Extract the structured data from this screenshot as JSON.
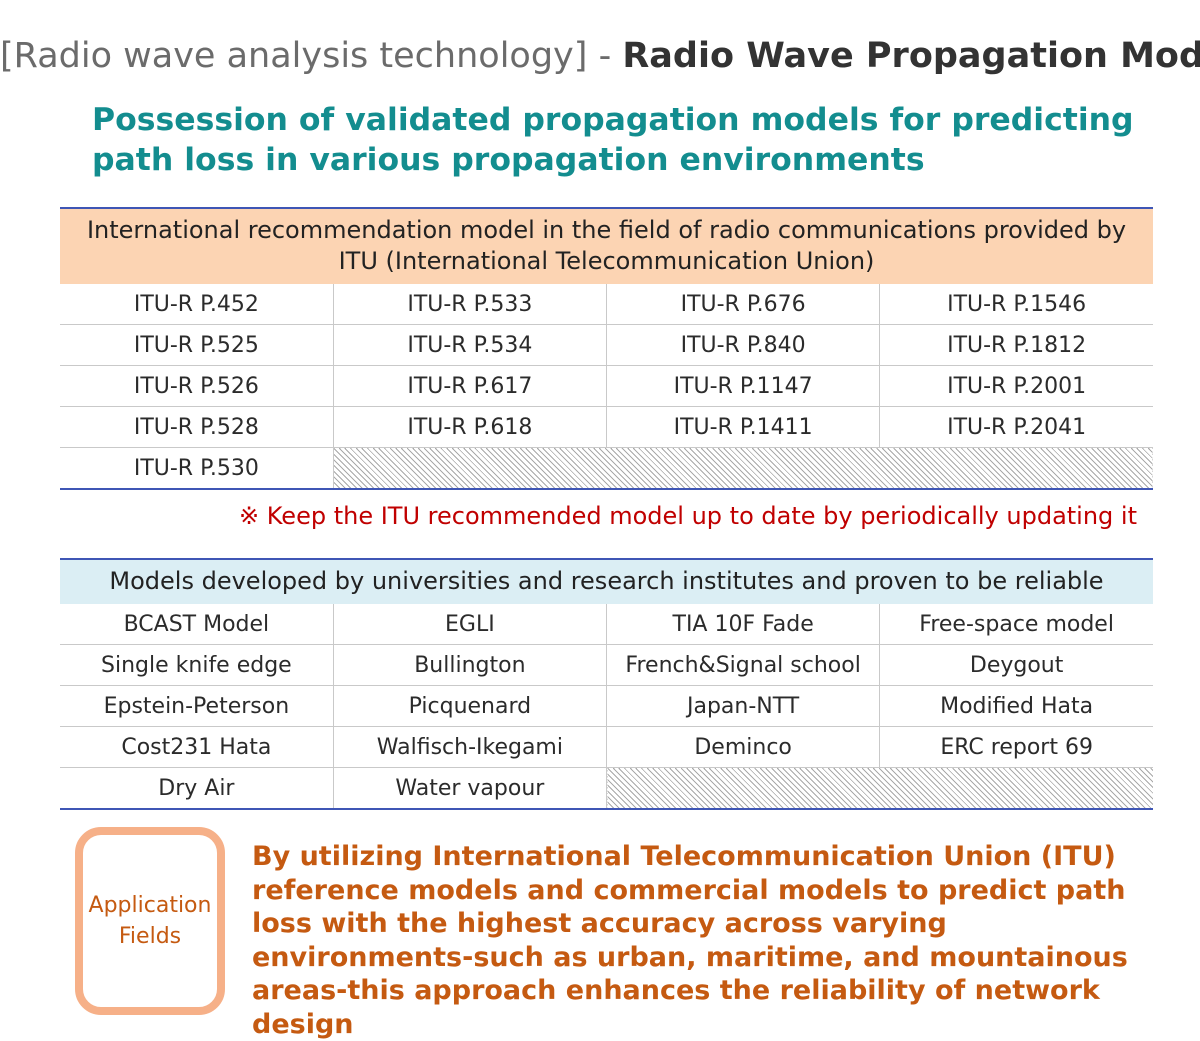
{
  "header": {
    "category": "[Radio wave analysis technology]",
    "separator": "-",
    "title": "Radio Wave Propagation Model"
  },
  "subtitle": "Possession of validated propagation models for predicting path loss in various propagation environments",
  "itu_section": {
    "heading": "International recommendation model in the field of radio communications provided by ITU (International Telecommunication Union)",
    "rows": [
      [
        "ITU-R P.452",
        "ITU-R P.533",
        "ITU-R P.676",
        "ITU-R P.1546"
      ],
      [
        "ITU-R P.525",
        "ITU-R P.534",
        "ITU-R P.840",
        "ITU-R P.1812"
      ],
      [
        "ITU-R P.526",
        "ITU-R P.617",
        "ITU-R P.1147",
        "ITU-R P.2001"
      ],
      [
        "ITU-R P.528",
        "ITU-R P.618",
        "ITU-R P.1411",
        "ITU-R P.2041"
      ],
      [
        "ITU-R P.530"
      ]
    ]
  },
  "note": "※ Keep the ITU recommended model up to date by periodically updating it",
  "models_section": {
    "heading": "Models developed by universities and research institutes and proven to be reliable",
    "rows": [
      [
        "BCAST Model",
        "EGLI",
        "TIA 10F Fade",
        "Free-space model"
      ],
      [
        "Single knife edge",
        "Bullington",
        "French&Signal school",
        "Deygout"
      ],
      [
        "Epstein-Peterson",
        "Picquenard",
        "Japan-NTT",
        "Modified Hata"
      ],
      [
        "Cost231 Hata",
        "Walfisch-Ikegami",
        "Deminco",
        "ERC report 69"
      ],
      [
        "Dry Air",
        "Water vapour"
      ]
    ]
  },
  "application": {
    "label_line1": "Application",
    "label_line2": "Fields",
    "text": "By utilizing International Telecommunication Union (ITU) reference models and commercial models to predict path loss with the highest accuracy across varying environments-such as urban, maritime, and mountainous areas-this approach enhances the reliability of network design"
  },
  "colors": {
    "subtitle": "#138d8f",
    "itu_header_bg": "#fcd4b3",
    "models_header_bg": "#dbeef4",
    "rule": "#3f56b5",
    "note": "#c00000",
    "application": "#c55a11",
    "application_border": "#f6b088"
  }
}
